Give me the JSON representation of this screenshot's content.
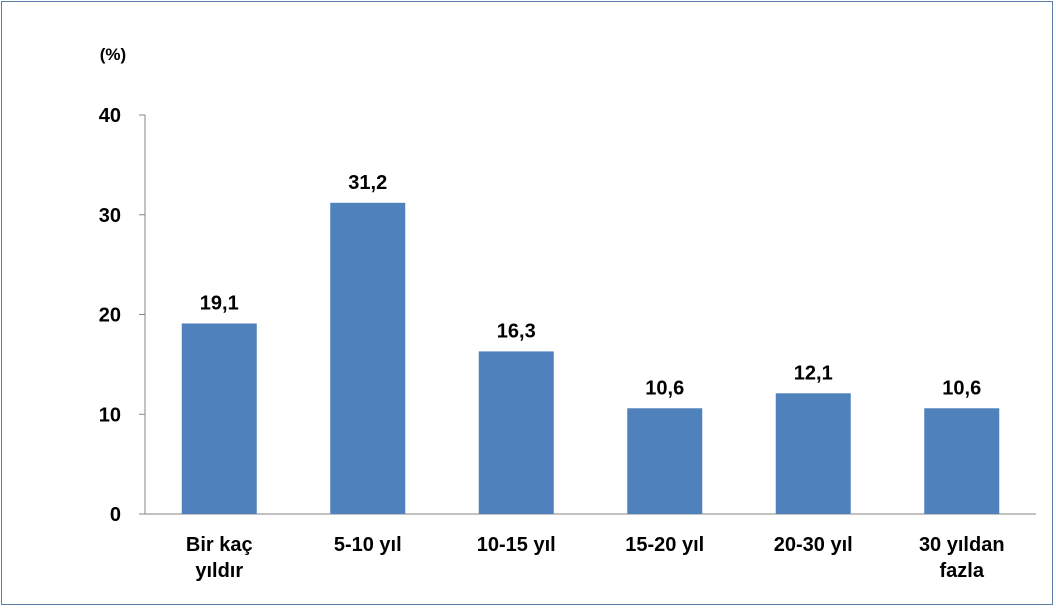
{
  "chart_data": {
    "type": "bar",
    "unit_label": "(%)",
    "categories": [
      [
        "Bir kaç",
        "yıldır"
      ],
      [
        "5-10 yıl"
      ],
      [
        "10-15 yıl"
      ],
      [
        "15-20 yıl"
      ],
      [
        "20-30 yıl"
      ],
      [
        "30 yıldan",
        "fazla"
      ]
    ],
    "values": [
      19.1,
      31.2,
      16.3,
      10.6,
      12.1,
      10.6
    ],
    "data_labels": [
      "19,1",
      "31,2",
      "16,3",
      "10,6",
      "12,1",
      "10,6"
    ],
    "yticks": [
      "0",
      "10",
      "20",
      "30",
      "40"
    ],
    "ylim": [
      0,
      40
    ],
    "grid": false,
    "legend": "none",
    "bar_color": "#4f81bd",
    "axis_color": "#868686"
  }
}
